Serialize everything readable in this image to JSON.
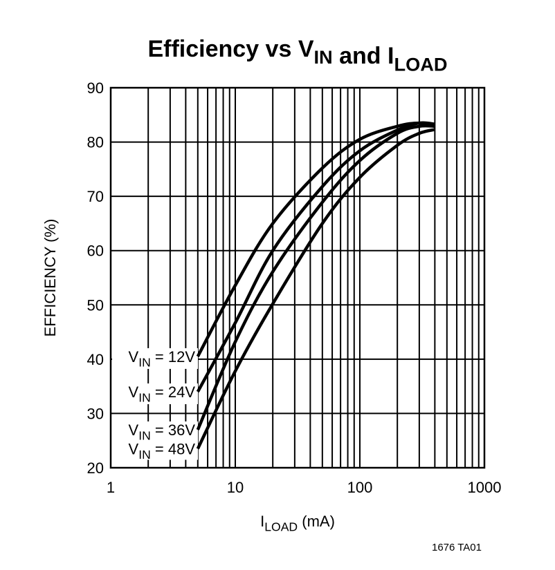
{
  "chart_data": {
    "type": "line",
    "title": {
      "parts": [
        {
          "text": "Efficiency vs V",
          "sub": false
        },
        {
          "text": "IN",
          "sub": true
        },
        {
          "text": " and I",
          "sub": false
        },
        {
          "text": "LOAD",
          "sub": true
        }
      ]
    },
    "xlabel": {
      "main": "I",
      "sub": "LOAD",
      "rest": " (mA)"
    },
    "ylabel": "EFFICIENCY (%)",
    "x_scale": "log",
    "xlim": [
      1,
      1000
    ],
    "ylim": [
      20,
      90
    ],
    "x_ticks": [
      "1",
      "10",
      "100",
      "1000"
    ],
    "x_tick_values": [
      1,
      10,
      100,
      1000
    ],
    "y_ticks": [
      "20",
      "30",
      "40",
      "50",
      "60",
      "70",
      "80",
      "90"
    ],
    "y_tick_values": [
      20,
      30,
      40,
      50,
      60,
      70,
      80,
      90
    ],
    "grid": true,
    "line_color": "#000000",
    "x": [
      5,
      10,
      20,
      50,
      100,
      200,
      300,
      400
    ],
    "series": [
      {
        "name": "V_IN = 12V",
        "label": {
          "v": "V",
          "sub": "IN",
          "rest": " = 12V"
        },
        "values": [
          40.5,
          53.6,
          65.0,
          75.2,
          80.5,
          82.9,
          83.5,
          83.0
        ]
      },
      {
        "name": "V_IN = 24V",
        "label": {
          "v": "V",
          "sub": "IN",
          "rest": " = 24V"
        },
        "values": [
          34.0,
          46.7,
          60.0,
          71.8,
          78.4,
          82.2,
          83.5,
          83.3
        ]
      },
      {
        "name": "V_IN = 36V",
        "label": {
          "v": "V",
          "sub": "IN",
          "rest": " = 36V"
        },
        "values": [
          27.0,
          43.2,
          56.1,
          68.9,
          76.6,
          81.6,
          82.9,
          82.9
        ]
      },
      {
        "name": "V_IN = 48V",
        "label": {
          "v": "V",
          "sub": "IN",
          "rest": " = 48V"
        },
        "values": [
          23.5,
          37.8,
          50.2,
          65.0,
          73.5,
          79.4,
          81.6,
          82.3
        ]
      }
    ],
    "footnote": "1676 TA01"
  }
}
